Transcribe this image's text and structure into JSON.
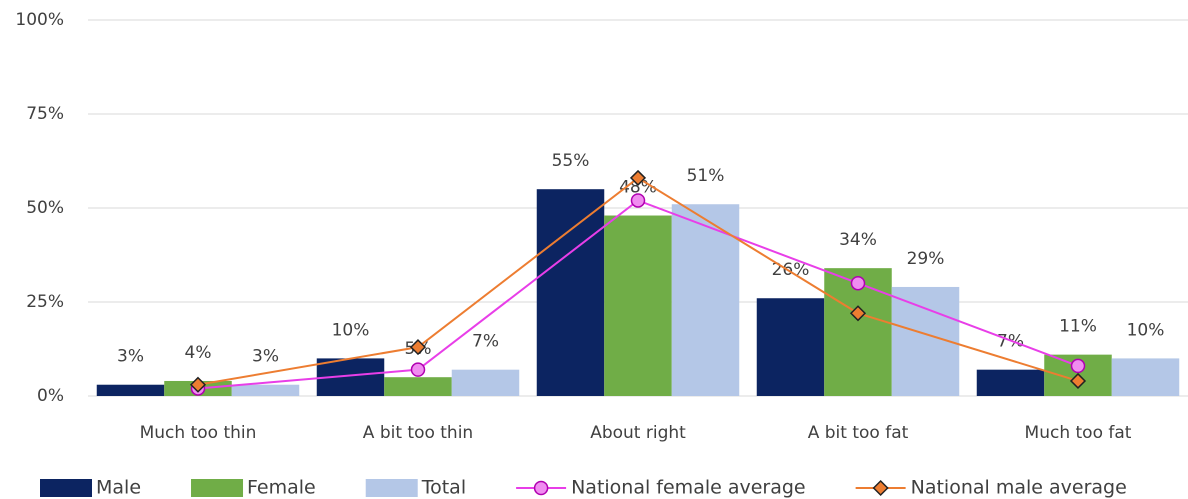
{
  "chart_data": {
    "type": "bar",
    "categories": [
      "Much too thin",
      "A bit too thin",
      "About right",
      "A bit too fat",
      "Much too fat"
    ],
    "series": [
      {
        "name": "Male",
        "color": "#0c2461",
        "values": [
          3,
          10,
          55,
          26,
          7
        ],
        "value_labels": [
          "3%",
          "10%",
          "55%",
          "26%",
          "7%"
        ]
      },
      {
        "name": "Female",
        "color": "#70ad47",
        "values": [
          4,
          5,
          48,
          34,
          11
        ],
        "value_labels": [
          "4%",
          "5%",
          "48%",
          "34%",
          "11%"
        ]
      },
      {
        "name": "Total",
        "color": "#b4c7e7",
        "values": [
          3,
          7,
          51,
          29,
          10
        ],
        "value_labels": [
          "3%",
          "7%",
          "51%",
          "29%",
          "10%"
        ]
      },
      {
        "name": "National female average",
        "type": "line",
        "marker": "circle",
        "color": "#e83ee8",
        "values": [
          2,
          7,
          52,
          30,
          8
        ]
      },
      {
        "name": "National male average",
        "type": "line",
        "marker": "diamond",
        "color": "#ed7d31",
        "values": [
          3,
          13,
          58,
          22,
          4
        ]
      }
    ],
    "ylim": [
      0,
      100
    ],
    "yticks": [
      {
        "value": 0,
        "label": "0%"
      },
      {
        "value": 25,
        "label": "25%"
      },
      {
        "value": 50,
        "label": "50%"
      },
      {
        "value": 75,
        "label": "75%"
      },
      {
        "value": 100,
        "label": "100%"
      }
    ],
    "grid": true
  }
}
